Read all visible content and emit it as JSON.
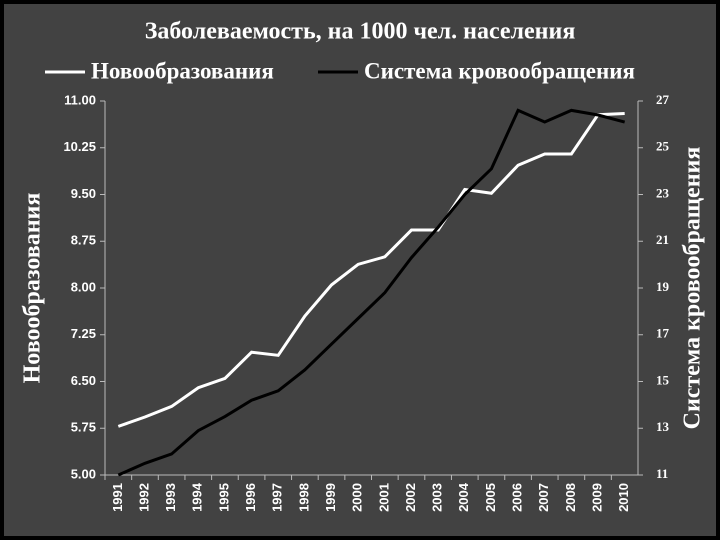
{
  "chart_data": {
    "type": "line",
    "title": "Заболеваемость, на 1000 чел. населения",
    "y_label": "Новообразования",
    "y2_label": "Система кровообращения",
    "categories": [
      "1991",
      "1992",
      "1993",
      "1994",
      "1995",
      "1996",
      "1997",
      "1998",
      "1999",
      "2000",
      "2001",
      "2002",
      "2003",
      "2004",
      "2005",
      "2006",
      "2007",
      "2008",
      "2009",
      "2010"
    ],
    "series": [
      {
        "name": "Новообразования",
        "color": "#ffffff",
        "axis": "y",
        "values": [
          5.78,
          5.93,
          6.1,
          6.4,
          6.55,
          6.97,
          6.92,
          7.55,
          8.05,
          8.38,
          8.5,
          8.93,
          8.93,
          9.58,
          9.52,
          9.97,
          10.15,
          10.15,
          10.78,
          10.8
        ]
      },
      {
        "name": "Система кровообращения",
        "color": "#000000",
        "axis": "y2",
        "values": [
          11.0,
          11.5,
          11.9,
          12.9,
          13.5,
          14.2,
          14.6,
          15.5,
          16.6,
          17.7,
          18.8,
          20.3,
          21.6,
          23.0,
          24.1,
          26.6,
          26.1,
          26.6,
          26.4,
          26.1
        ]
      }
    ],
    "ylim": [
      5,
      11
    ],
    "yticks": [
      {
        "value": 5,
        "label": "5.00"
      },
      {
        "value": 5.75,
        "label": "5.75"
      },
      {
        "value": 6.5,
        "label": "6.50"
      },
      {
        "value": 7.25,
        "label": "7.25"
      },
      {
        "value": 8,
        "label": "8.00"
      },
      {
        "value": 8.75,
        "label": "8.75"
      },
      {
        "value": 9.5,
        "label": "9.50"
      },
      {
        "value": 10.25,
        "label": "10.25"
      },
      {
        "value": 11,
        "label": "11.00"
      }
    ],
    "y2lim": [
      11,
      27
    ],
    "y2ticks": [
      11,
      13,
      15,
      17,
      19,
      21,
      23,
      25,
      27
    ]
  }
}
